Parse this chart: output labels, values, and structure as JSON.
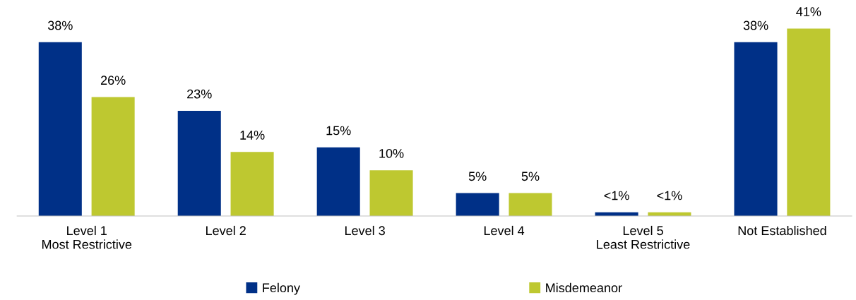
{
  "chart_data": {
    "type": "bar",
    "categories": [
      "Level 1\nMost Restrictive",
      "Level 2",
      "Level 3",
      "Level 4",
      "Level 5\nLeast Restrictive",
      "Not Established"
    ],
    "series": [
      {
        "name": "Felony",
        "color": "#003087",
        "values": [
          38,
          23,
          15,
          5,
          0.8,
          38
        ],
        "value_labels": [
          "38%",
          "23%",
          "15%",
          "5%",
          "<1%",
          "38%"
        ]
      },
      {
        "name": "Misdemeanor",
        "color": "#bec830",
        "values": [
          26,
          14,
          10,
          5,
          0.8,
          41
        ],
        "value_labels": [
          "26%",
          "14%",
          "10%",
          "5%",
          "<1%",
          "41%"
        ]
      }
    ],
    "legend": "bottom",
    "grid": false
  }
}
